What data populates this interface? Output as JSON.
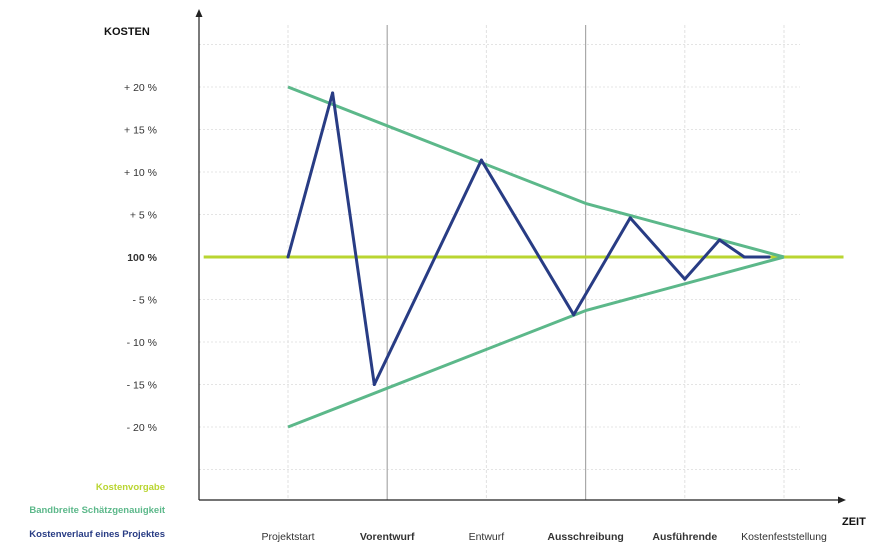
{
  "chart_data": {
    "type": "line",
    "ylabel": "KOSTEN",
    "xlabel": "ZEIT",
    "ylim": [
      -25,
      25
    ],
    "y_ticks": [
      {
        "value": 20,
        "label": "+ 20 %"
      },
      {
        "value": 15,
        "label": "+ 15 %"
      },
      {
        "value": 10,
        "label": "+ 10 %"
      },
      {
        "value": 5,
        "label": "+  5 %"
      },
      {
        "value": 0,
        "label": "100 %",
        "highlight": true
      },
      {
        "value": -5,
        "label": "-  5 %"
      },
      {
        "value": -10,
        "label": "- 10 %"
      },
      {
        "value": -15,
        "label": "- 15 %"
      },
      {
        "value": -20,
        "label": "- 20 %"
      }
    ],
    "xlim": [
      -1,
      5.2
    ],
    "phases": [
      {
        "x": 0,
        "label": "Projektstart",
        "bold": false
      },
      {
        "x": 1,
        "label": "Vorentwurf",
        "bold": true
      },
      {
        "x": 2,
        "label": "Entwurf",
        "bold": false
      },
      {
        "x": 3,
        "label": "Ausschreibung",
        "bold": true
      },
      {
        "x": 4,
        "label": "Ausführende",
        "bold": true
      },
      {
        "x": 5,
        "label": "Kostenfeststellung",
        "bold": false
      }
    ],
    "series": [
      {
        "name": "Kostenvorgabe",
        "color": "#b9d531",
        "points": [
          [
            -0.85,
            0
          ],
          [
            5.6,
            0
          ]
        ]
      },
      {
        "name": "Bandbreite Schätzgenauigkeit",
        "color": "#5cb88a",
        "upper": [
          [
            0,
            20
          ],
          [
            3,
            6.3
          ],
          [
            5,
            0
          ]
        ],
        "lower": [
          [
            0,
            -20
          ],
          [
            3,
            -6.3
          ],
          [
            5,
            0
          ]
        ]
      },
      {
        "name": "Kostenverlauf eines Projektes",
        "color": "#283c84",
        "points": [
          [
            0,
            0
          ],
          [
            0.45,
            19.3
          ],
          [
            0.87,
            -15
          ],
          [
            1.95,
            11.4
          ],
          [
            2.88,
            -6.8
          ],
          [
            3.45,
            4.6
          ],
          [
            4.0,
            -2.6
          ],
          [
            4.35,
            2.0
          ],
          [
            4.6,
            0
          ],
          [
            4.85,
            0
          ]
        ]
      }
    ],
    "legend": [
      {
        "label": "Kostenvorgabe",
        "color": "#b9d531"
      },
      {
        "label": "Bandbreite Schätzgenauigkeit",
        "color": "#5cb88a"
      },
      {
        "label": "Kostenverlauf eines Projektes",
        "color": "#283c84"
      }
    ],
    "legend_position": "bottom-left"
  }
}
